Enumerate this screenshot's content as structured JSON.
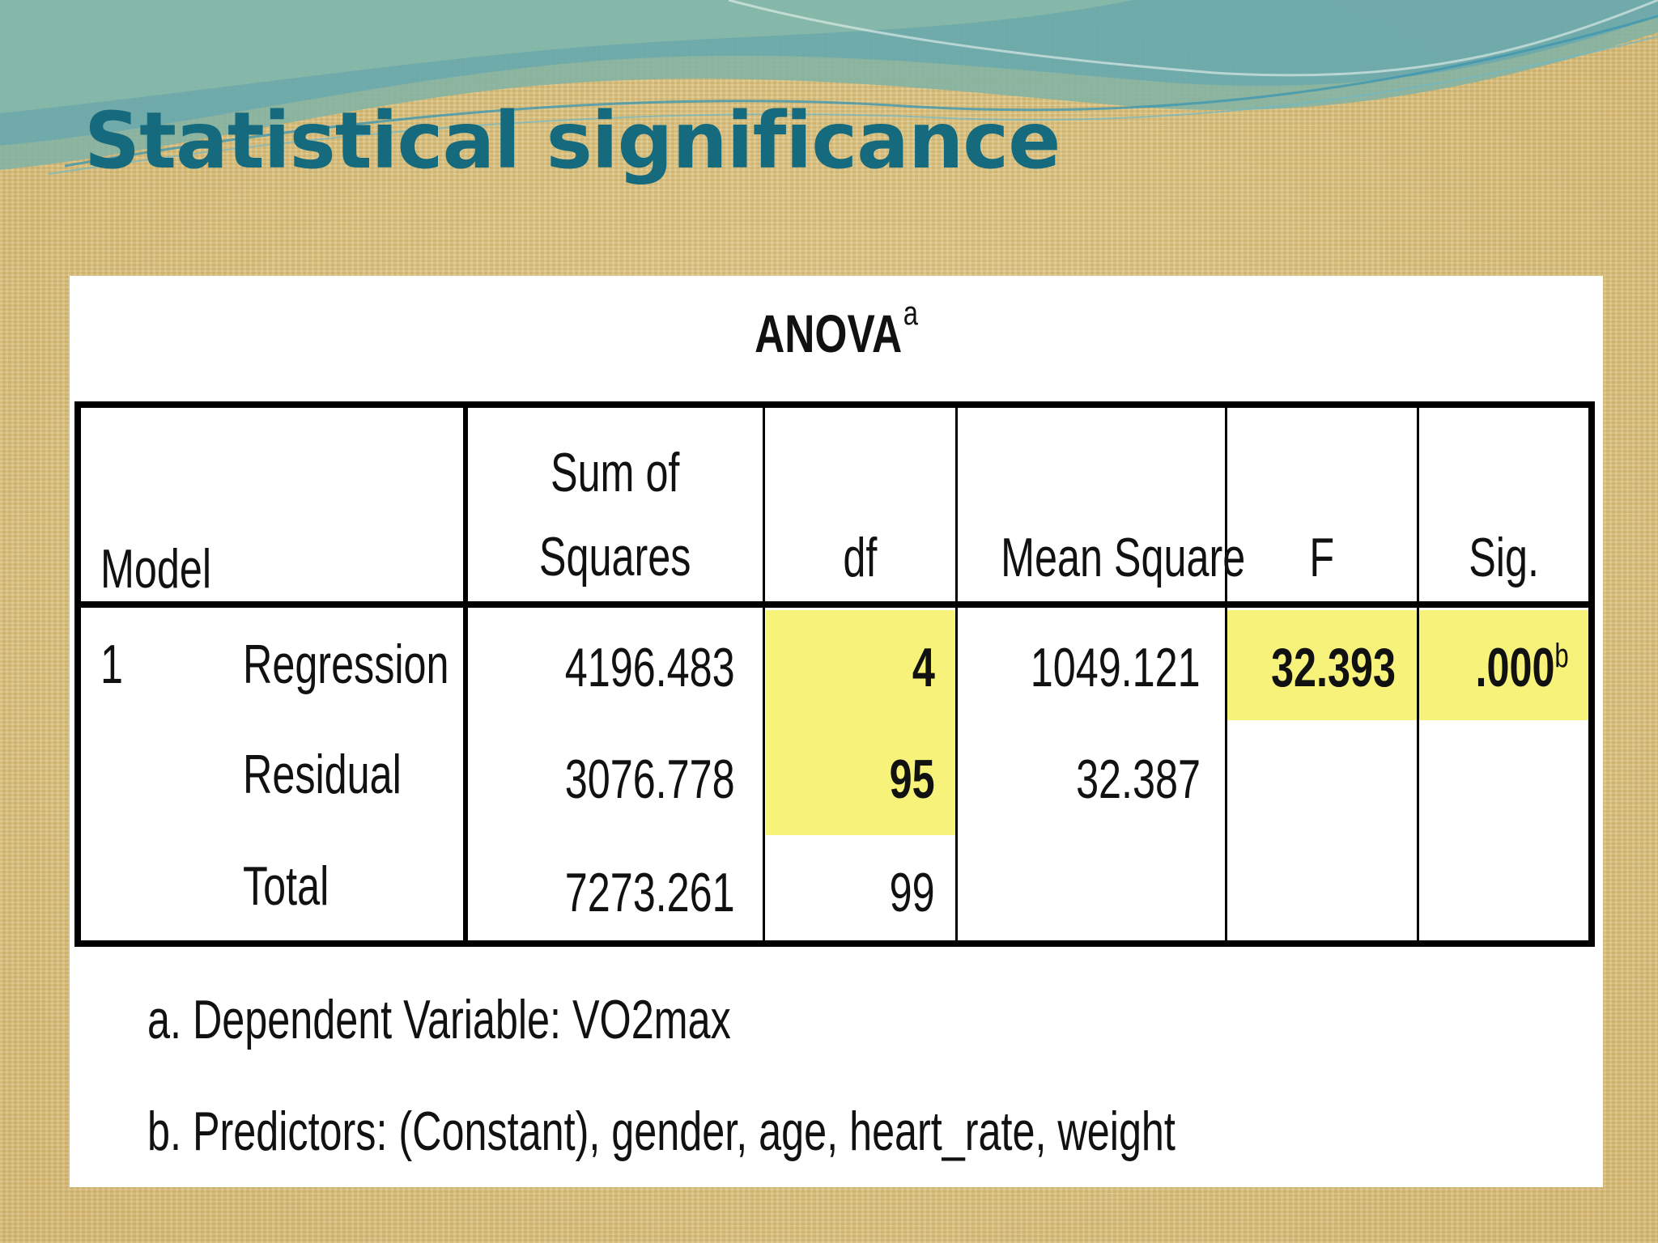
{
  "slide": {
    "title": "Statistical significance"
  },
  "table": {
    "title": "ANOVA",
    "title_superscript": "a",
    "headers": {
      "model": "Model",
      "sum_of_squares_line1": "Sum of",
      "sum_of_squares_line2": "Squares",
      "df": "df",
      "mean_square": "Mean Square",
      "f": "F",
      "sig": "Sig."
    },
    "model_number": "1",
    "rows": [
      {
        "label": "Regression",
        "sum_of_squares": "4196.483",
        "df": "4",
        "mean_square": "1049.121",
        "f": "32.393",
        "sig": ".000",
        "sig_superscript": "b"
      },
      {
        "label": "Residual",
        "sum_of_squares": "3076.778",
        "df": "95",
        "mean_square": "32.387",
        "f": "",
        "sig": ""
      },
      {
        "label": "Total",
        "sum_of_squares": "7273.261",
        "df": "99",
        "mean_square": "",
        "f": "",
        "sig": ""
      }
    ],
    "footnotes": [
      "a. Dependent Variable: VO2max",
      "b. Predictors: (Constant), gender, age, heart_rate, weight"
    ],
    "highlight_color": "#f6f27a"
  },
  "colors": {
    "title": "#166a7e",
    "background": "#dcc27e"
  }
}
